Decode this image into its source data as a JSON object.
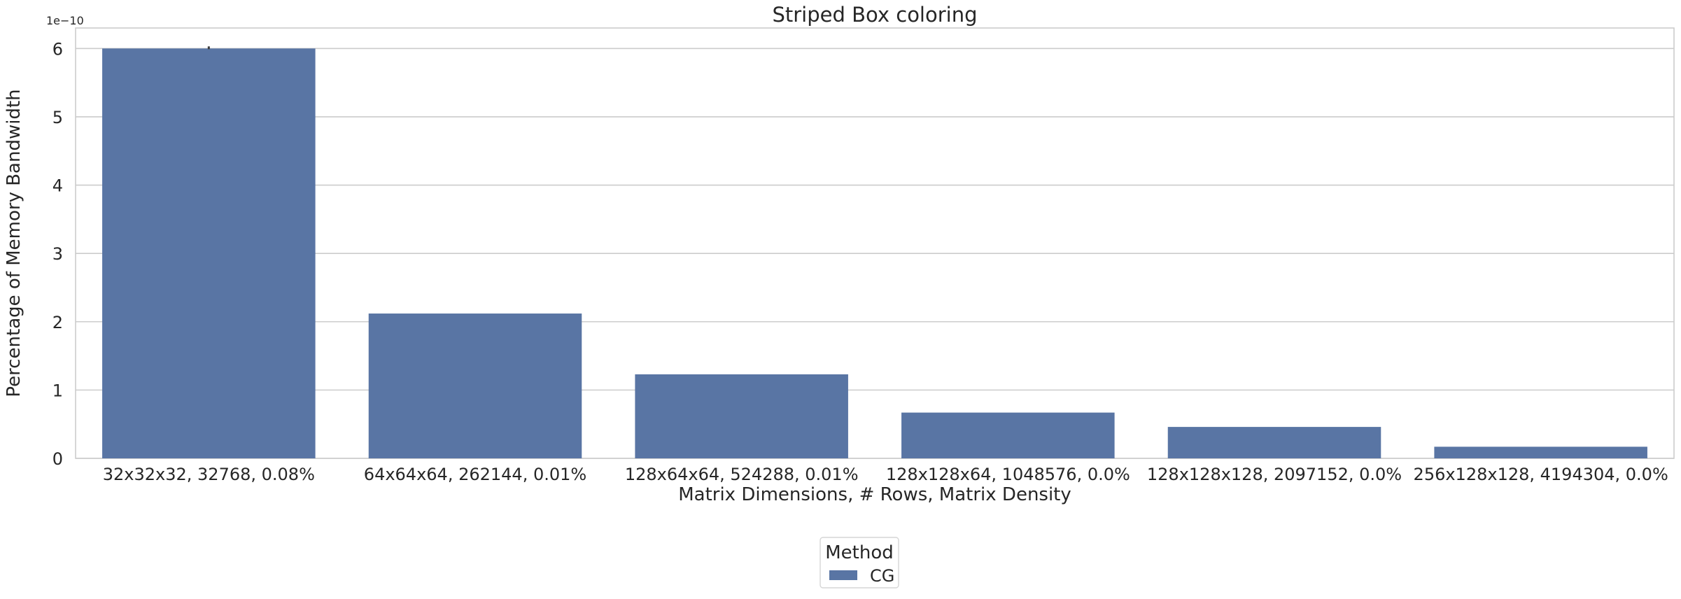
{
  "chart_data": {
    "type": "bar",
    "title": "Striped Box coloring",
    "xlabel": "Matrix Dimensions, # Rows, Matrix Density",
    "ylabel": "Percentage of Memory Bandwidth",
    "y_offset_label": "1e−10",
    "y_scale_factor": 1e-10,
    "ylim": [
      0,
      6.3
    ],
    "yticks": [
      0,
      1,
      2,
      3,
      4,
      5,
      6
    ],
    "grid": true,
    "categories": [
      "32x32x32, 32768, 0.08%",
      "64x64x64, 262144, 0.01%",
      "128x64x64, 524288, 0.01%",
      "128x128x64, 1048576, 0.0%",
      "128x128x128, 2097152, 0.0%",
      "256x128x128, 4194304, 0.0%"
    ],
    "series": [
      {
        "name": "CG",
        "color": "#5975a4",
        "values": [
          6.0,
          2.12,
          1.23,
          0.67,
          0.46,
          0.17
        ]
      }
    ],
    "legend": {
      "title": "Method",
      "placement": "bottom-center"
    }
  }
}
